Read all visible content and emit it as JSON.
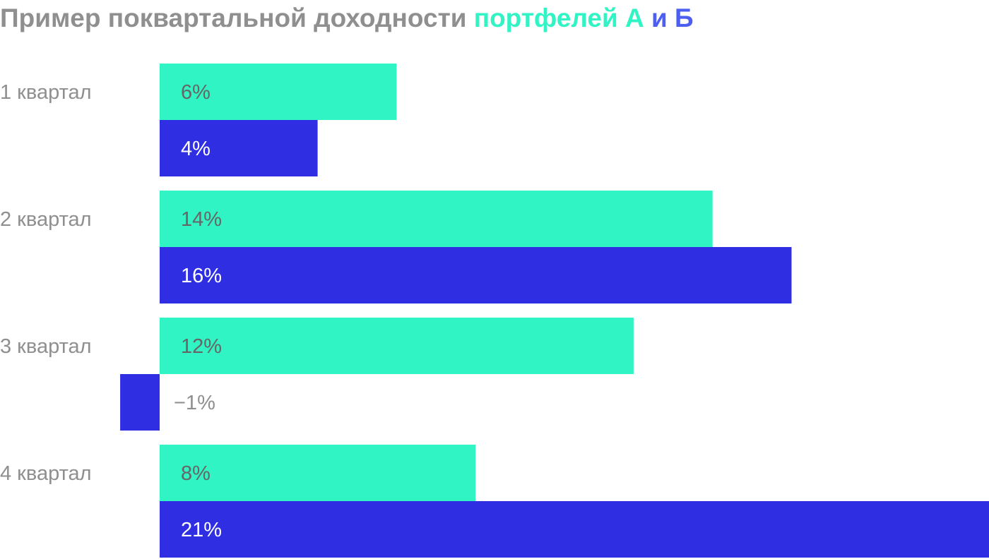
{
  "colors": {
    "title": "#8f8f8f",
    "series_a": "#31f4c5",
    "series_b": "#2f2ee3",
    "title_b": "#4d5ff0",
    "label_on_a": "#666666",
    "label_on_b": "#ffffff",
    "label_outside": "#8f8f8f"
  },
  "chart_data": {
    "type": "bar",
    "orientation": "horizontal",
    "title": {
      "part1": "Пример поквартальной доходности ",
      "part2": "портфелей А",
      "part3": " и ",
      "part4": "Б"
    },
    "categories": [
      "1 квартал",
      "2 квартал",
      "3 квартал",
      "4 квартал"
    ],
    "series": [
      {
        "values": [
          6,
          14,
          12,
          8
        ],
        "labels": [
          "6%",
          "14%",
          "12%",
          "8%"
        ],
        "color": "#31f4c5"
      },
      {
        "values": [
          4,
          16,
          -1,
          21
        ],
        "labels": [
          "4%",
          "16%",
          "−1%",
          "21%"
        ],
        "color": "#2f2ee3"
      }
    ],
    "xlim": [
      -1,
      21
    ],
    "unit": "%",
    "grid": false,
    "legend": "in-title"
  }
}
